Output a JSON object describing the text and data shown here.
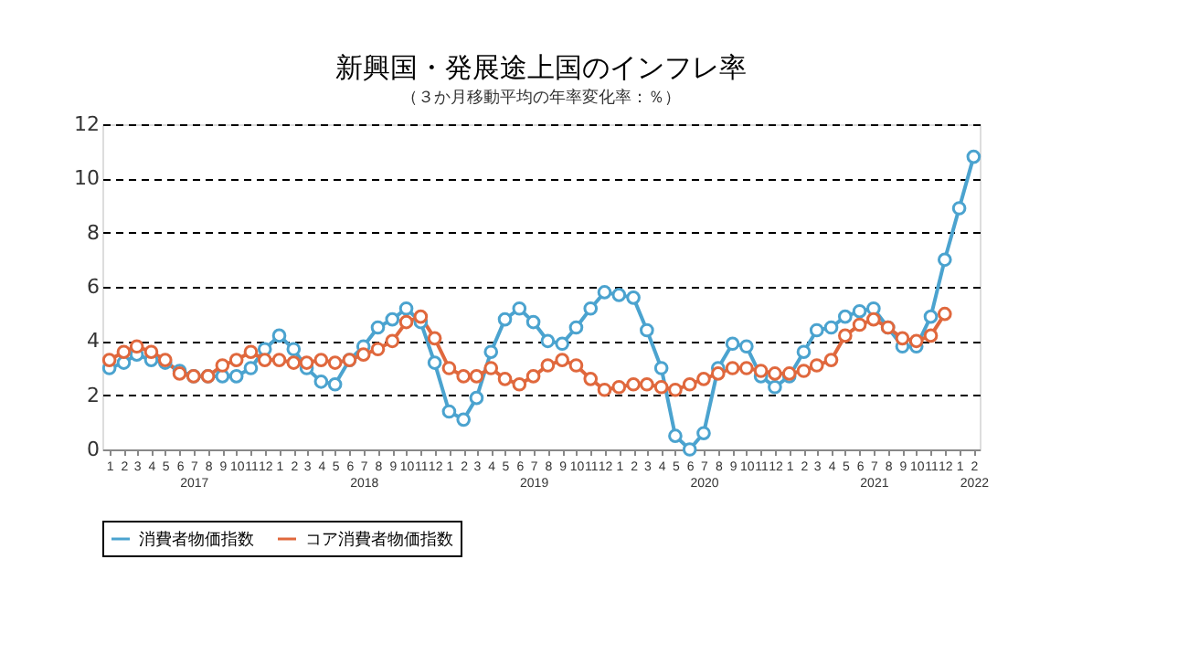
{
  "chart_data": {
    "type": "line",
    "title": "新興国・発展途上国のインフレ率",
    "subtitle": "（３か月移動平均の年率変化率：％）",
    "x": [
      "2017-01",
      "2017-02",
      "2017-03",
      "2017-04",
      "2017-05",
      "2017-06",
      "2017-07",
      "2017-08",
      "2017-09",
      "2017-10",
      "2017-11",
      "2017-12",
      "2018-01",
      "2018-02",
      "2018-03",
      "2018-04",
      "2018-05",
      "2018-06",
      "2018-07",
      "2018-08",
      "2018-09",
      "2018-10",
      "2018-11",
      "2018-12",
      "2019-01",
      "2019-02",
      "2019-03",
      "2019-04",
      "2019-05",
      "2019-06",
      "2019-07",
      "2019-08",
      "2019-09",
      "2019-10",
      "2019-11",
      "2019-12",
      "2020-01",
      "2020-02",
      "2020-03",
      "2020-04",
      "2020-05",
      "2020-06",
      "2020-07",
      "2020-08",
      "2020-09",
      "2020-10",
      "2020-11",
      "2020-12",
      "2021-01",
      "2021-02",
      "2021-03",
      "2021-04",
      "2021-05",
      "2021-06",
      "2021-07",
      "2021-08",
      "2021-09",
      "2021-10",
      "2021-11",
      "2021-12",
      "2022-01",
      "2022-02"
    ],
    "series": [
      {
        "name": "消費者物価指数",
        "color": "#4ba3cf",
        "values": [
          3.0,
          3.2,
          3.5,
          3.3,
          3.2,
          2.9,
          2.7,
          2.7,
          2.7,
          2.7,
          3.0,
          3.7,
          4.2,
          3.7,
          3.0,
          2.5,
          2.4,
          3.3,
          3.8,
          4.5,
          4.8,
          5.2,
          4.7,
          3.2,
          1.4,
          1.1,
          1.9,
          3.6,
          4.8,
          5.2,
          4.7,
          4.0,
          3.9,
          4.5,
          5.2,
          5.8,
          5.7,
          5.6,
          4.4,
          3.0,
          0.5,
          0.0,
          0.6,
          3.0,
          3.9,
          3.8,
          2.7,
          2.3,
          2.7,
          3.6,
          4.4,
          4.5,
          4.9,
          5.1,
          5.2,
          4.5,
          3.8,
          3.8,
          4.9,
          7.0,
          8.9,
          10.8
        ]
      },
      {
        "name": "コア消費者物価指数",
        "color": "#e0683d",
        "values": [
          3.3,
          3.6,
          3.8,
          3.6,
          3.3,
          2.8,
          2.7,
          2.7,
          3.1,
          3.3,
          3.6,
          3.3,
          3.3,
          3.2,
          3.2,
          3.3,
          3.2,
          3.3,
          3.5,
          3.7,
          4.0,
          4.7,
          4.9,
          4.1,
          3.0,
          2.7,
          2.7,
          3.0,
          2.6,
          2.4,
          2.7,
          3.1,
          3.3,
          3.1,
          2.6,
          2.2,
          2.3,
          2.4,
          2.4,
          2.3,
          2.2,
          2.4,
          2.6,
          2.8,
          3.0,
          3.0,
          2.9,
          2.8,
          2.8,
          2.9,
          3.1,
          3.3,
          4.2,
          4.6,
          4.8,
          4.5,
          4.1,
          4.0,
          4.2,
          5.0,
          null,
          null
        ]
      }
    ],
    "xlim": [
      "2016-12-17",
      "2022-02-14"
    ],
    "xticks": [
      {
        "value": "2017-01",
        "label": "1"
      },
      {
        "value": "2017-02",
        "label": "2"
      },
      {
        "value": "2017-03",
        "label": "3"
      },
      {
        "value": "2017-04",
        "label": "4"
      },
      {
        "value": "2017-05",
        "label": "5"
      },
      {
        "value": "2017-06",
        "label": "6"
      },
      {
        "value": "2017-07",
        "label": "7\n2017"
      },
      {
        "value": "2017-08",
        "label": "8"
      },
      {
        "value": "2017-09",
        "label": "9"
      },
      {
        "value": "2017-10",
        "label": "10"
      },
      {
        "value": "2017-11",
        "label": "11"
      },
      {
        "value": "2017-12",
        "label": "12"
      },
      {
        "value": "2018-01",
        "label": "1"
      },
      {
        "value": "2018-02",
        "label": "2"
      },
      {
        "value": "2018-03",
        "label": "3"
      },
      {
        "value": "2018-04",
        "label": "4"
      },
      {
        "value": "2018-05",
        "label": "5"
      },
      {
        "value": "2018-06",
        "label": "6"
      },
      {
        "value": "2018-07",
        "label": "7\n2018"
      },
      {
        "value": "2018-08",
        "label": "8"
      },
      {
        "value": "2018-09",
        "label": "9"
      },
      {
        "value": "2018-10",
        "label": "10"
      },
      {
        "value": "2018-11",
        "label": "11"
      },
      {
        "value": "2018-12",
        "label": "12"
      },
      {
        "value": "2019-01",
        "label": "1"
      },
      {
        "value": "2019-02",
        "label": "2"
      },
      {
        "value": "2019-03",
        "label": "3"
      },
      {
        "value": "2019-04",
        "label": "4"
      },
      {
        "value": "2019-05",
        "label": "5"
      },
      {
        "value": "2019-06",
        "label": "6"
      },
      {
        "value": "2019-07",
        "label": "7\n2019"
      },
      {
        "value": "2019-08",
        "label": "8"
      },
      {
        "value": "2019-09",
        "label": "9"
      },
      {
        "value": "2019-10",
        "label": "10"
      },
      {
        "value": "2019-11",
        "label": "11"
      },
      {
        "value": "2019-12",
        "label": "12"
      },
      {
        "value": "2020-01",
        "label": "1"
      },
      {
        "value": "2020-02",
        "label": "2"
      },
      {
        "value": "2020-03",
        "label": "3"
      },
      {
        "value": "2020-04",
        "label": "4"
      },
      {
        "value": "2020-05",
        "label": "5"
      },
      {
        "value": "2020-06",
        "label": "6"
      },
      {
        "value": "2020-07",
        "label": "7\n2020"
      },
      {
        "value": "2020-08",
        "label": "8"
      },
      {
        "value": "2020-09",
        "label": "9"
      },
      {
        "value": "2020-10",
        "label": "10"
      },
      {
        "value": "2020-11",
        "label": "11"
      },
      {
        "value": "2020-12",
        "label": "12"
      },
      {
        "value": "2021-01",
        "label": "1"
      },
      {
        "value": "2021-02",
        "label": "2"
      },
      {
        "value": "2021-03",
        "label": "3"
      },
      {
        "value": "2021-04",
        "label": "4"
      },
      {
        "value": "2021-05",
        "label": "5"
      },
      {
        "value": "2021-06",
        "label": "6"
      },
      {
        "value": "2021-07",
        "label": "7\n2021"
      },
      {
        "value": "2021-08",
        "label": "8"
      },
      {
        "value": "2021-09",
        "label": "9"
      },
      {
        "value": "2021-10",
        "label": "10"
      },
      {
        "value": "2021-11",
        "label": "11"
      },
      {
        "value": "2021-12",
        "label": "12"
      },
      {
        "value": "2022-01",
        "label": "1"
      },
      {
        "value": "2022-02",
        "label": "2\n2022"
      }
    ],
    "ylim": [
      0,
      12
    ],
    "yticks": [
      0,
      2,
      4,
      6,
      8,
      10,
      12
    ],
    "grid": "y",
    "legend": "bottom",
    "marker": "circle",
    "line_style": "solid"
  }
}
